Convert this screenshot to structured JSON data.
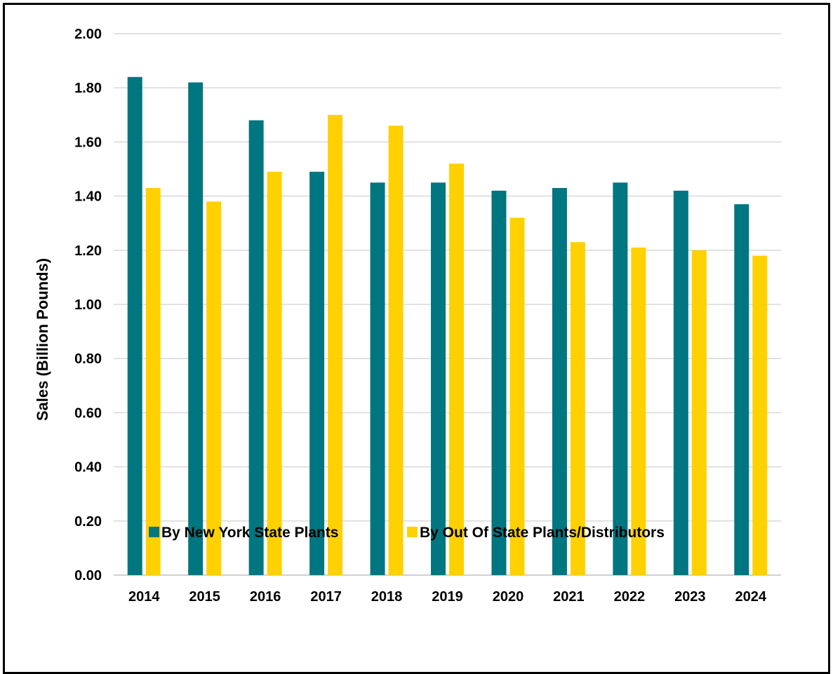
{
  "chart_data": {
    "type": "bar",
    "title": "",
    "xlabel": "",
    "ylabel": "Sales (Billion Pounds)",
    "ylim": [
      0,
      2
    ],
    "ytick_step": 0.2,
    "ytick_labels": [
      "0.00",
      "0.20",
      "0.40",
      "0.60",
      "0.80",
      "1.00",
      "1.20",
      "1.40",
      "1.60",
      "1.80",
      "2.00"
    ],
    "grid": true,
    "legend_position": "bottom",
    "categories": [
      "2014",
      "2015",
      "2016",
      "2017",
      "2018",
      "2019",
      "2020",
      "2021",
      "2022",
      "2023",
      "2024"
    ],
    "series": [
      {
        "name": "By New York State Plants",
        "color": "#007680",
        "values": [
          1.84,
          1.82,
          1.68,
          1.49,
          1.45,
          1.45,
          1.42,
          1.43,
          1.45,
          1.42,
          1.37
        ]
      },
      {
        "name": "By Out Of State Plants/Distributors",
        "color": "#FFD100",
        "values": [
          1.43,
          1.38,
          1.49,
          1.7,
          1.66,
          1.52,
          1.32,
          1.23,
          1.21,
          1.2,
          1.18
        ]
      }
    ],
    "colors": {
      "grid": "#d9d9d9",
      "axis": "#bfbfbf",
      "text": "#000000",
      "frame": "#000000"
    }
  }
}
